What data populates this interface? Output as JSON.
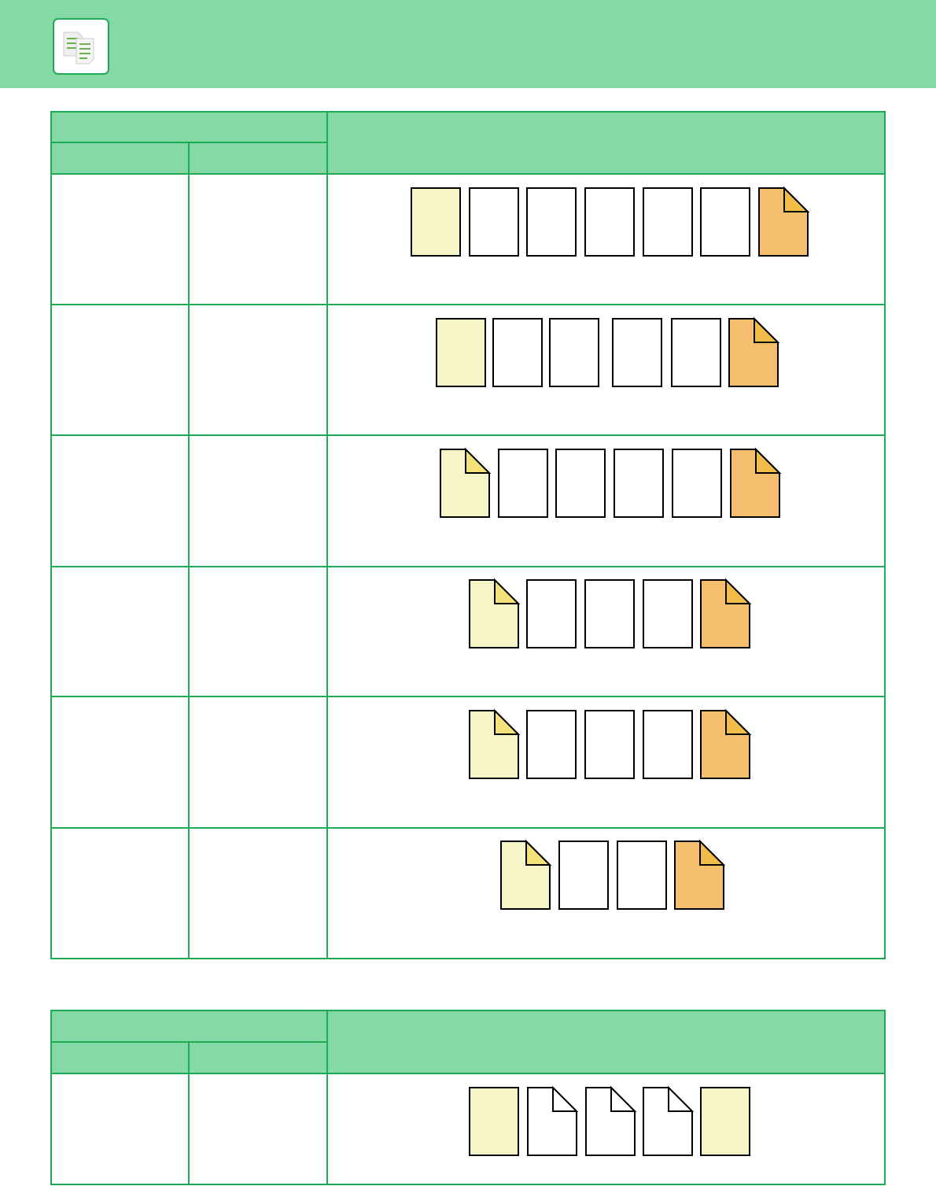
{
  "colors": {
    "header_bg": "#84d9a7",
    "border": "#1faa55",
    "page_yellow": "#f6f5c8",
    "page_orange": "#f5bf6e",
    "fold_orange": "#f2bc4a",
    "fold_yellow": "#f3e27a"
  },
  "header": {
    "icon": "copy-documents-icon"
  },
  "tables": [
    {
      "rows": [
        [
          "plain-yellow",
          "blank",
          "blank",
          "blank",
          "blank",
          "blank",
          "folded-orange"
        ],
        [
          "plain-yellow",
          "blank",
          "blank",
          "blank",
          "blank",
          "folded-orange"
        ],
        [
          "folded-yellow",
          "blank",
          "blank",
          "blank",
          "blank",
          "folded-orange"
        ],
        [
          "folded-yellow",
          "blank",
          "blank",
          "blank",
          "folded-orange"
        ],
        [
          "folded-yellow",
          "blank",
          "blank",
          "blank",
          "folded-orange"
        ],
        [
          "folded-yellow",
          "blank",
          "blank",
          "folded-orange"
        ]
      ]
    },
    {
      "rows": [
        [
          "plain-yellow",
          "folded-white",
          "folded-white",
          "folded-white",
          "plain-yellow"
        ]
      ]
    }
  ]
}
